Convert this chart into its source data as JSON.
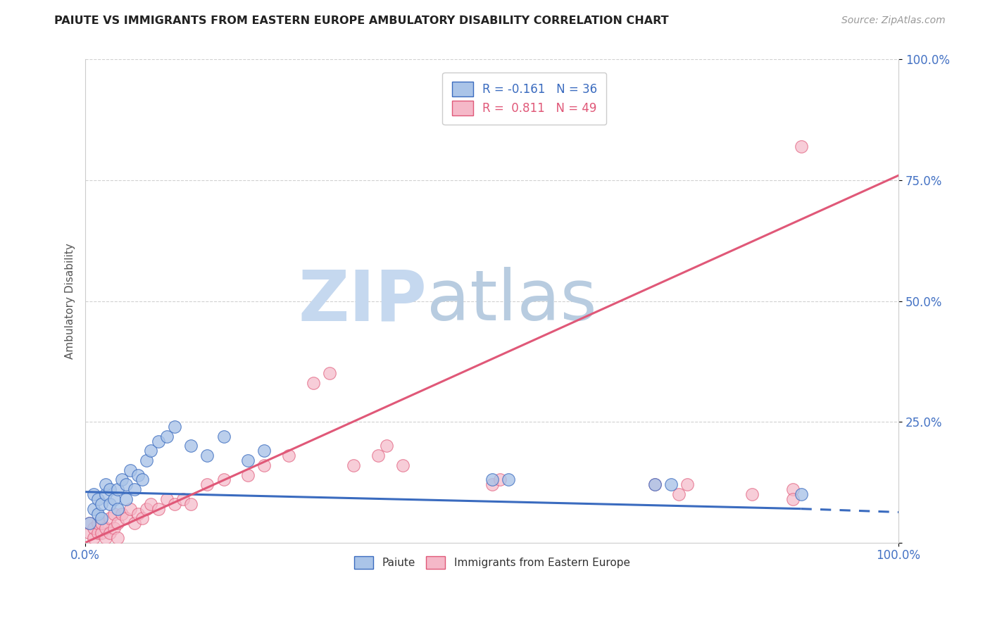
{
  "title": "PAIUTE VS IMMIGRANTS FROM EASTERN EUROPE AMBULATORY DISABILITY CORRELATION CHART",
  "source_text": "Source: ZipAtlas.com",
  "ylabel": "Ambulatory Disability",
  "legend_label_1": "Paiute",
  "legend_label_2": "Immigrants from Eastern Europe",
  "r1": -0.161,
  "n1": 36,
  "r2": 0.811,
  "n2": 49,
  "color1": "#aac4e8",
  "color2": "#f5b8c8",
  "trendline1_color": "#3a6bbf",
  "trendline2_color": "#e05878",
  "watermark_zip": "ZIP",
  "watermark_atlas": "atlas",
  "watermark_color_zip": "#c5d8ef",
  "watermark_color_atlas": "#b8cce0",
  "background_color": "#ffffff",
  "xlim": [
    0.0,
    1.0
  ],
  "ylim": [
    0.0,
    1.0
  ],
  "ytick_positions": [
    0.0,
    0.25,
    0.5,
    0.75,
    1.0
  ],
  "ytick_labels": [
    "",
    "25.0%",
    "50.0%",
    "75.0%",
    "100.0%"
  ],
  "xtick_positions": [
    0.0,
    1.0
  ],
  "xtick_labels": [
    "0.0%",
    "100.0%"
  ],
  "trendline1_x0": 0.0,
  "trendline1_y0": 0.105,
  "trendline1_x1": 0.88,
  "trendline1_y1": 0.07,
  "trendline1_dashed_x0": 0.88,
  "trendline1_dashed_y0": 0.07,
  "trendline1_dashed_x1": 1.0,
  "trendline1_dashed_y1": 0.063,
  "trendline2_x0": 0.0,
  "trendline2_y0": 0.0,
  "trendline2_x1": 1.0,
  "trendline2_y1": 0.76,
  "paiute_x": [
    0.005,
    0.01,
    0.01,
    0.015,
    0.015,
    0.02,
    0.02,
    0.025,
    0.025,
    0.03,
    0.03,
    0.035,
    0.04,
    0.04,
    0.045,
    0.05,
    0.05,
    0.055,
    0.06,
    0.065,
    0.07,
    0.075,
    0.08,
    0.09,
    0.1,
    0.11,
    0.13,
    0.15,
    0.17,
    0.2,
    0.22,
    0.5,
    0.52,
    0.7,
    0.72,
    0.88
  ],
  "paiute_y": [
    0.04,
    0.07,
    0.1,
    0.06,
    0.09,
    0.05,
    0.08,
    0.1,
    0.12,
    0.08,
    0.11,
    0.09,
    0.07,
    0.11,
    0.13,
    0.09,
    0.12,
    0.15,
    0.11,
    0.14,
    0.13,
    0.17,
    0.19,
    0.21,
    0.22,
    0.24,
    0.2,
    0.18,
    0.22,
    0.17,
    0.19,
    0.13,
    0.13,
    0.12,
    0.12,
    0.1
  ],
  "eastern_x": [
    0.005,
    0.005,
    0.01,
    0.01,
    0.015,
    0.015,
    0.02,
    0.02,
    0.025,
    0.025,
    0.03,
    0.03,
    0.035,
    0.035,
    0.04,
    0.04,
    0.045,
    0.05,
    0.055,
    0.06,
    0.065,
    0.07,
    0.075,
    0.08,
    0.09,
    0.1,
    0.11,
    0.12,
    0.13,
    0.15,
    0.17,
    0.2,
    0.22,
    0.25,
    0.28,
    0.3,
    0.33,
    0.36,
    0.37,
    0.39,
    0.5,
    0.51,
    0.7,
    0.73,
    0.74,
    0.82,
    0.87,
    0.87,
    0.88
  ],
  "eastern_y": [
    0.02,
    0.04,
    0.01,
    0.03,
    0.02,
    0.04,
    0.02,
    0.04,
    0.01,
    0.03,
    0.02,
    0.05,
    0.03,
    0.06,
    0.01,
    0.04,
    0.06,
    0.05,
    0.07,
    0.04,
    0.06,
    0.05,
    0.07,
    0.08,
    0.07,
    0.09,
    0.08,
    0.09,
    0.08,
    0.12,
    0.13,
    0.14,
    0.16,
    0.18,
    0.33,
    0.35,
    0.16,
    0.18,
    0.2,
    0.16,
    0.12,
    0.13,
    0.12,
    0.1,
    0.12,
    0.1,
    0.11,
    0.09,
    0.82
  ]
}
